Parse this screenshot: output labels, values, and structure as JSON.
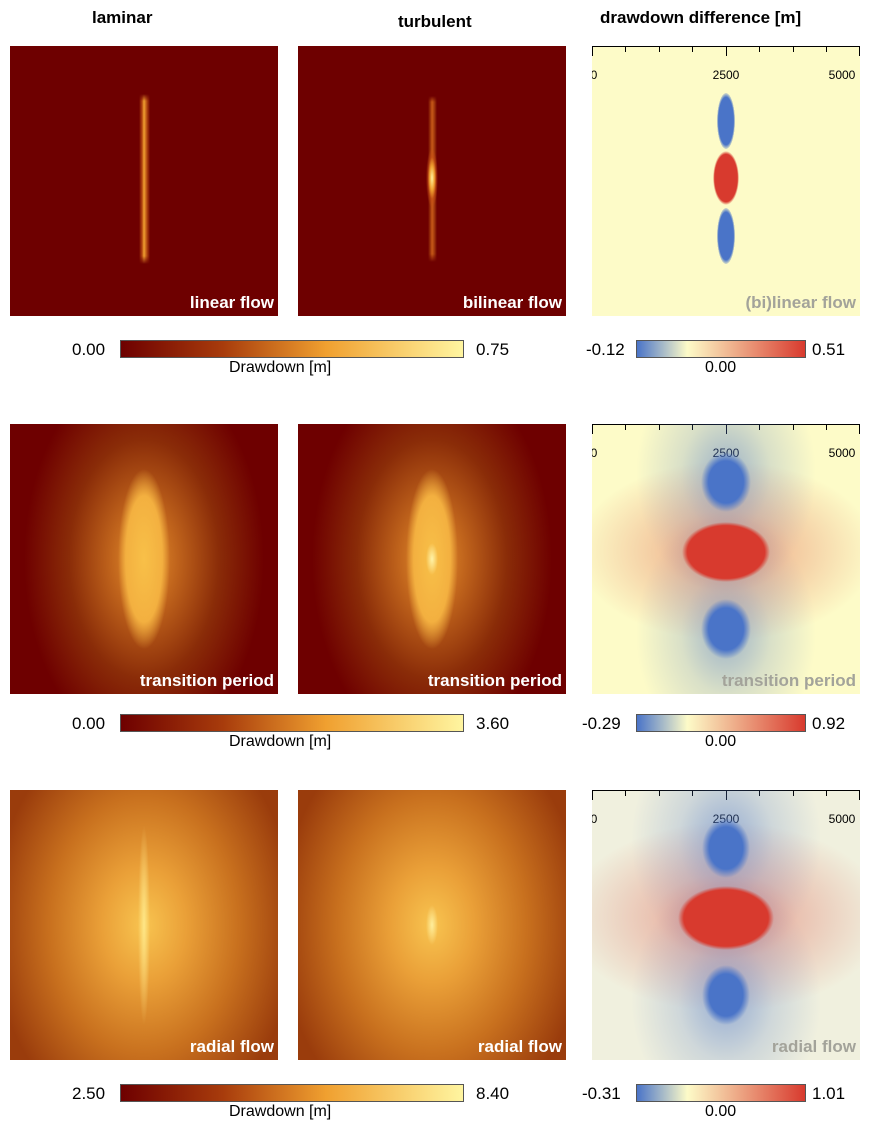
{
  "headers": {
    "laminar": "laminar",
    "turbulent": "turbulent",
    "difference": "drawdown difference [m]"
  },
  "axis": {
    "ticks": [
      "0",
      "2500",
      "5000"
    ]
  },
  "rows": [
    {
      "laminar_label": "linear flow",
      "turbulent_label": "bilinear flow",
      "diff_label": "(bi)linear flow",
      "drawdown_colorbar": {
        "min": "0.00",
        "max": "0.75",
        "units": "Drawdown [m]"
      },
      "diff_colorbar": {
        "min": "-0.12",
        "max": "0.51",
        "center": "0.00"
      }
    },
    {
      "laminar_label": "transition period",
      "turbulent_label": "transition period",
      "diff_label": "transition period",
      "drawdown_colorbar": {
        "min": "0.00",
        "max": "3.60",
        "units": "Drawdown [m]"
      },
      "diff_colorbar": {
        "min": "-0.29",
        "max": "0.92",
        "center": "0.00"
      }
    },
    {
      "laminar_label": "radial flow",
      "turbulent_label": "radial flow",
      "diff_label": "radial flow",
      "drawdown_colorbar": {
        "min": "2.50",
        "max": "8.40",
        "units": "Drawdown [m]"
      },
      "diff_colorbar": {
        "min": "-0.31",
        "max": "1.01",
        "center": "0.00"
      }
    }
  ],
  "colors": {
    "drawdown_low": "#6e0000",
    "drawdown_mid": "#f0a030",
    "drawdown_high": "#fff5a0",
    "diff_negative": "#4a74c8",
    "diff_zero": "#fdfbc8",
    "diff_positive": "#d83a2e"
  }
}
